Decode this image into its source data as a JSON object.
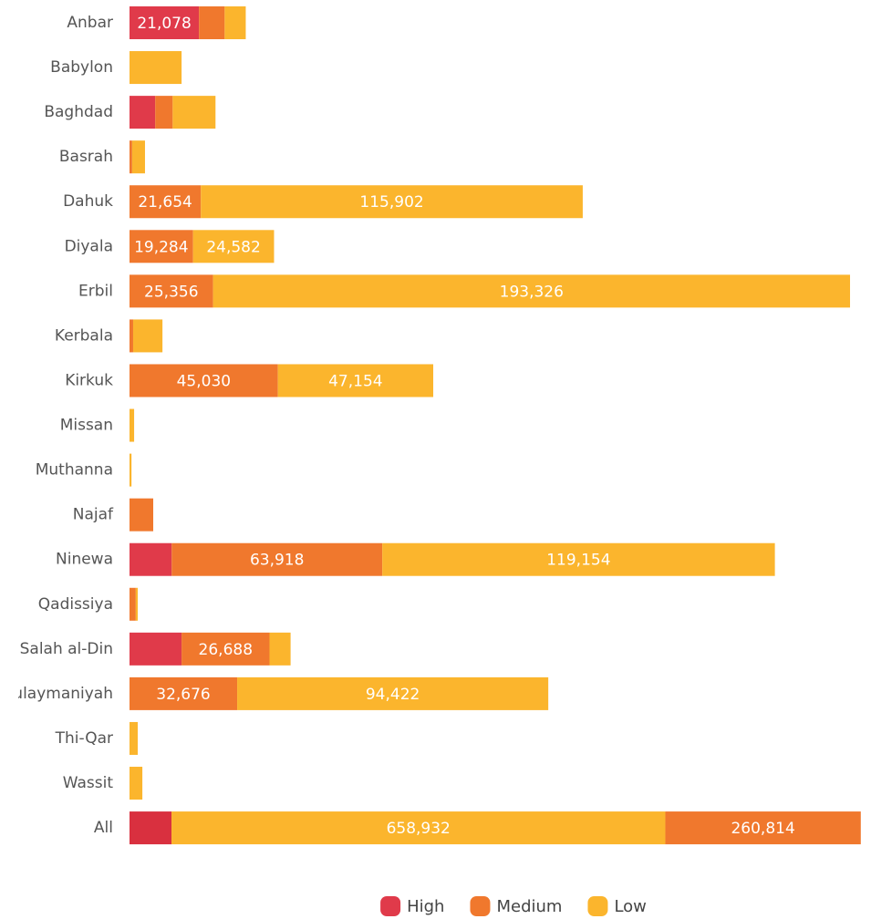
{
  "chart_data": [
    {
      "type": "stacked-bar-horizontal",
      "categories": [
        "Anbar",
        "Babylon",
        "Baghdad",
        "Basrah",
        "Dahuk",
        "Diyala",
        "Erbil",
        "Kerbala",
        "Kirkuk",
        "Missan",
        "Muthanna",
        "Najaf",
        "Ninewa",
        "Qadissiya",
        "Salah al-Din",
        "Sulaymaniyah",
        "Thi-Qar",
        "Wassit"
      ],
      "xlim": [
        0,
        222000
      ],
      "legend": "bottom",
      "series": [
        {
          "name": "High",
          "color": "#e03a4a",
          "values": [
            21078,
            0,
            7800,
            0,
            0,
            0,
            0,
            0,
            0,
            0,
            0,
            0,
            12800,
            0,
            15800,
            0,
            0,
            0
          ],
          "value_labels": [
            "21,078",
            null,
            null,
            null,
            null,
            null,
            null,
            null,
            null,
            null,
            null,
            null,
            null,
            null,
            null,
            null,
            null,
            null
          ]
        },
        {
          "name": "Medium",
          "color": "#f0782d",
          "values": [
            7800,
            0,
            5300,
            800,
            21654,
            19284,
            25356,
            1100,
            45030,
            0,
            0,
            7200,
            63918,
            1900,
            26688,
            32676,
            0,
            0
          ],
          "value_labels": [
            null,
            null,
            null,
            null,
            "21,654",
            "19,284",
            "25,356",
            null,
            "45,030",
            null,
            null,
            null,
            "63,918",
            null,
            "26,688",
            "32,676",
            null,
            null
          ]
        },
        {
          "name": "Low",
          "color": "#fbb52d",
          "values": [
            6400,
            15800,
            13000,
            3900,
            115902,
            24582,
            193326,
            8900,
            47154,
            1400,
            600,
            0,
            119154,
            600,
            6400,
            94422,
            2500,
            3900
          ],
          "value_labels": [
            null,
            null,
            null,
            null,
            "115,902",
            "24,582",
            "193,326",
            null,
            "47,154",
            null,
            null,
            null,
            "119,154",
            null,
            null,
            "94,422",
            null,
            null
          ]
        }
      ]
    },
    {
      "type": "stacked-bar-horizontal",
      "categories": [
        "All"
      ],
      "xlim": [
        0,
        976000
      ],
      "series": [
        {
          "name": "High",
          "color": "#d9303f",
          "values": [
            56000
          ],
          "value_labels": [
            null
          ]
        },
        {
          "name": "Low",
          "color": "#fbb52d",
          "values": [
            658932
          ],
          "value_labels": [
            "658,932"
          ]
        },
        {
          "name": "Medium",
          "color": "#f0782d",
          "values": [
            260814
          ],
          "value_labels": [
            "260,814"
          ]
        }
      ]
    }
  ]
}
